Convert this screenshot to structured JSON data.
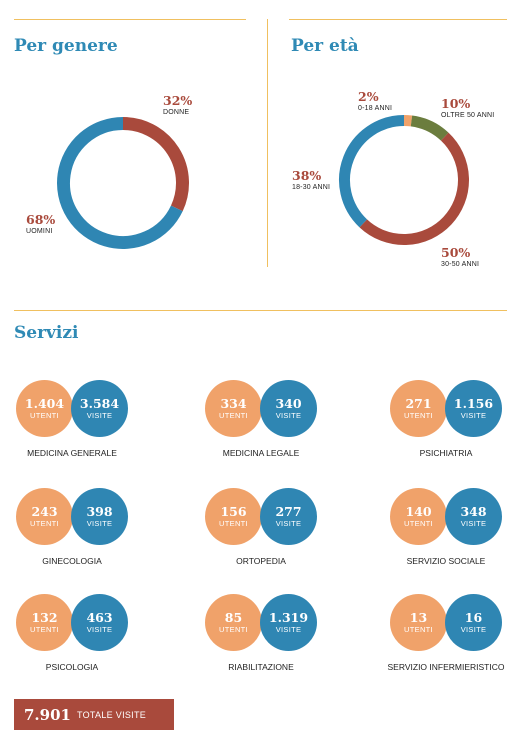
{
  "gender": {
    "title": "Per genere",
    "chart_data": {
      "type": "pie",
      "categories": [
        "DONNE",
        "UOMINI"
      ],
      "values": [
        32,
        68
      ],
      "colors": [
        "#a94a3c",
        "#2f86b3"
      ]
    },
    "labels": [
      {
        "pct": "32%",
        "label": "DONNE"
      },
      {
        "pct": "68%",
        "label": "UOMINI"
      }
    ]
  },
  "age": {
    "title": "Per età",
    "chart_data": {
      "type": "pie",
      "categories": [
        "0-18 ANNI",
        "OLTRE 50 ANNI",
        "30-50 ANNI",
        "18-30 ANNI"
      ],
      "values": [
        2,
        10,
        50,
        38
      ],
      "colors": [
        "#f0a26a",
        "#6b7d3e",
        "#a94a3c",
        "#2f86b3"
      ]
    },
    "labels": [
      {
        "pct": "2%",
        "label": "0-18 ANNI"
      },
      {
        "pct": "10%",
        "label": "OLTRE 50 ANNI"
      },
      {
        "pct": "38%",
        "label": "18-30 ANNI"
      },
      {
        "pct": "50%",
        "label": "30-50 ANNI"
      }
    ]
  },
  "services": {
    "title": "Servizi",
    "users_label": "UTENTI",
    "visits_label": "VISITE",
    "items": [
      {
        "name": "MEDICINA GENERALE",
        "users": "1.404",
        "visits": "3.584"
      },
      {
        "name": "MEDICINA LEGALE",
        "users": "334",
        "visits": "340"
      },
      {
        "name": "PSICHIATRIA",
        "users": "271",
        "visits": "1.156"
      },
      {
        "name": "GINECOLOGIA",
        "users": "243",
        "visits": "398"
      },
      {
        "name": "ORTOPEDIA",
        "users": "156",
        "visits": "277"
      },
      {
        "name": "SERVIZIO SOCIALE",
        "users": "140",
        "visits": "348"
      },
      {
        "name": "PSICOLOGIA",
        "users": "132",
        "visits": "463"
      },
      {
        "name": "RIABILITAZIONE",
        "users": "85",
        "visits": "1.319"
      },
      {
        "name": "SERVIZIO INFERMIERISTICO",
        "users": "13",
        "visits": "16"
      }
    ]
  },
  "total": {
    "value": "7.901",
    "label": "TOTALE VISITE"
  }
}
